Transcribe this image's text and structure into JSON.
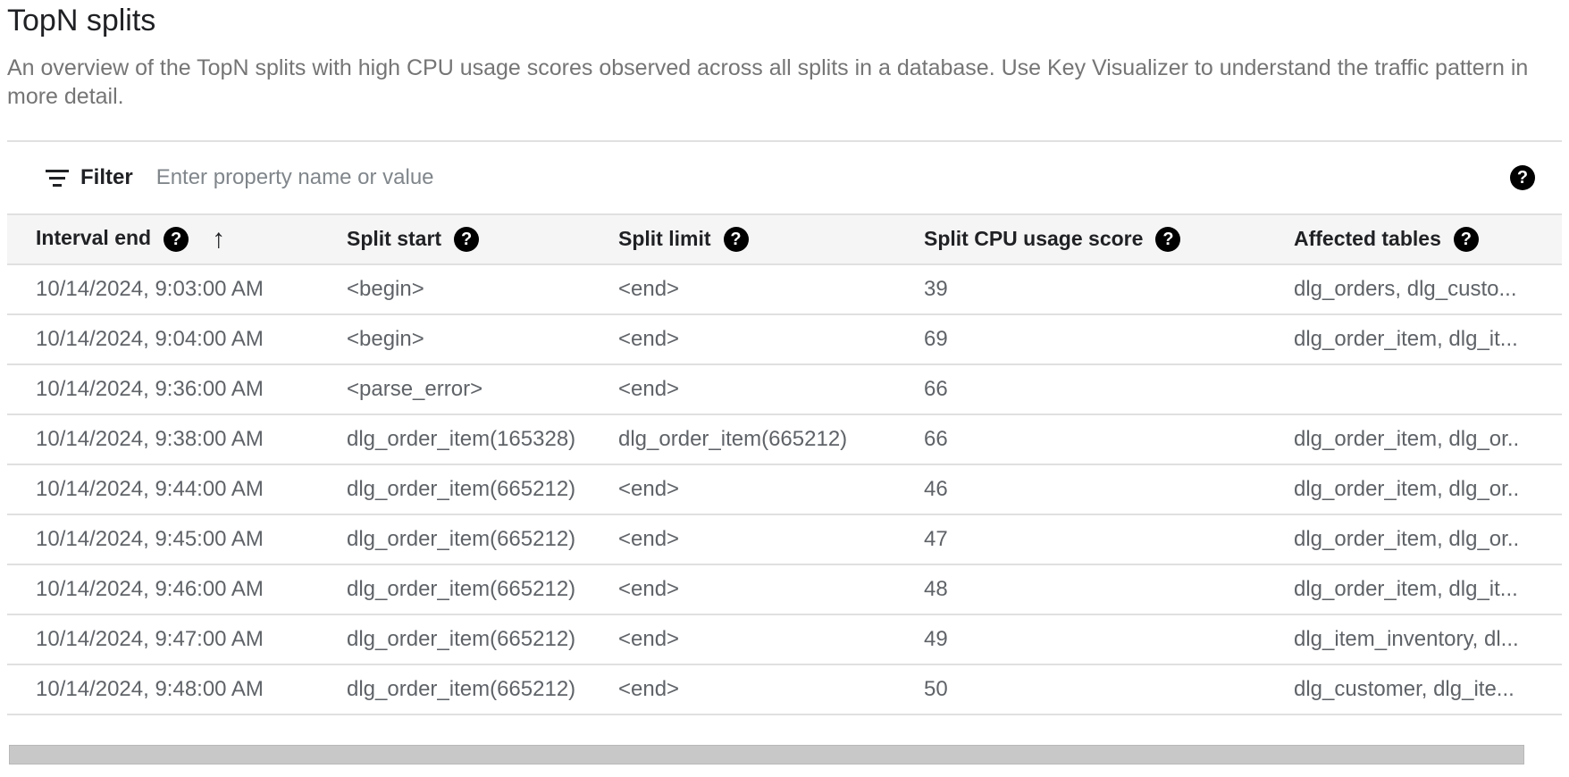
{
  "title": "TopN splits",
  "description": "An overview of the TopN splits with high CPU usage scores observed across all splits in a database. Use Key Visualizer to understand the traffic pattern in more detail.",
  "filter": {
    "label": "Filter",
    "placeholder": "Enter property name or value",
    "icon": "filter-list-icon"
  },
  "table": {
    "sort": {
      "column": "Interval end",
      "direction": "ascending"
    },
    "columns": [
      "Interval end",
      "Split start",
      "Split limit",
      "Split CPU usage score",
      "Affected tables"
    ],
    "rows": [
      [
        "10/14/2024, 9:03:00 AM",
        "<begin>",
        "<end>",
        "39",
        "dlg_orders, dlg_custo..."
      ],
      [
        "10/14/2024, 9:04:00 AM",
        "<begin>",
        "<end>",
        "69",
        "dlg_order_item, dlg_it..."
      ],
      [
        "10/14/2024, 9:36:00 AM",
        "<parse_error>",
        "<end>",
        "66",
        ""
      ],
      [
        "10/14/2024, 9:38:00 AM",
        "dlg_order_item(165328)",
        "dlg_order_item(665212)",
        "66",
        "dlg_order_item, dlg_or.."
      ],
      [
        "10/14/2024, 9:44:00 AM",
        "dlg_order_item(665212)",
        "<end>",
        "46",
        "dlg_order_item, dlg_or.."
      ],
      [
        "10/14/2024, 9:45:00 AM",
        "dlg_order_item(665212)",
        "<end>",
        "47",
        "dlg_order_item, dlg_or.."
      ],
      [
        "10/14/2024, 9:46:00 AM",
        "dlg_order_item(665212)",
        "<end>",
        "48",
        "dlg_order_item, dlg_it..."
      ],
      [
        "10/14/2024, 9:47:00 AM",
        "dlg_order_item(665212)",
        "<end>",
        "49",
        "dlg_item_inventory, dl..."
      ],
      [
        "10/14/2024, 9:48:00 AM",
        "dlg_order_item(665212)",
        "<end>",
        "50",
        "dlg_customer, dlg_ite..."
      ]
    ]
  }
}
